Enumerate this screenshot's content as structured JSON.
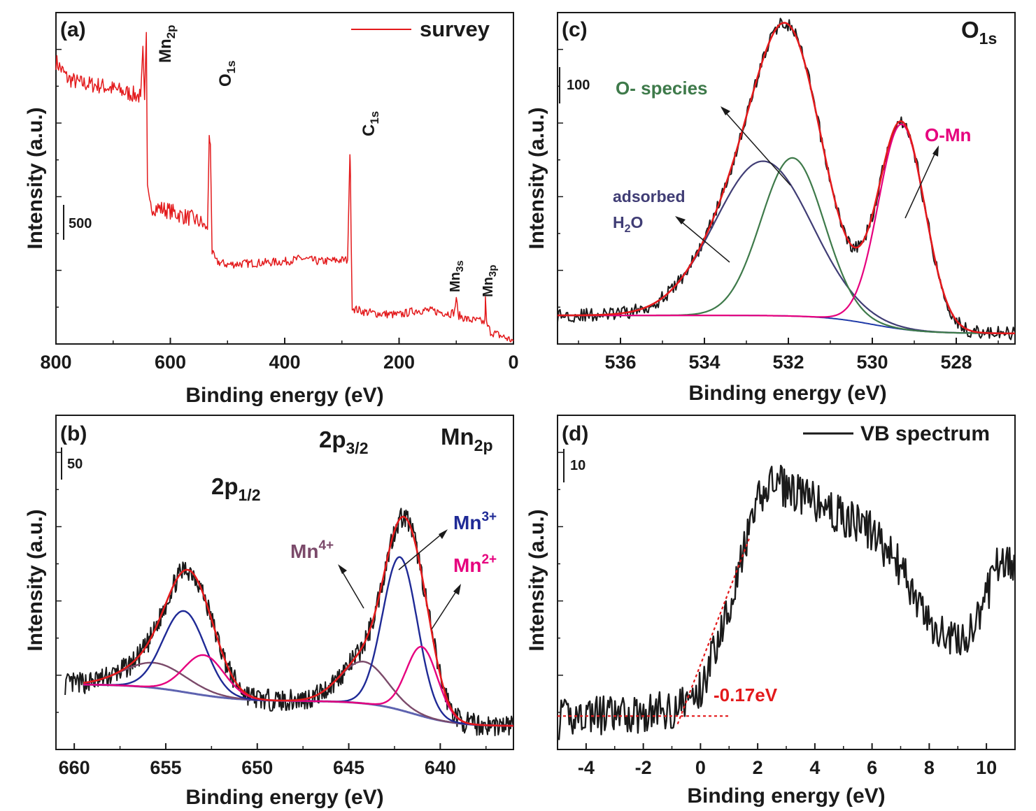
{
  "chart_data": [
    {
      "panel": "(a)",
      "type": "line",
      "xlabel": "Binding energy (eV)",
      "ylabel": "Intensity (a.u.)",
      "xlim": [
        800,
        0
      ],
      "x_ticks": [
        "800",
        "600",
        "400",
        "200",
        "0"
      ],
      "scale_bar": "500",
      "legend": [
        {
          "label": "survey",
          "color": "#e31a1c"
        }
      ],
      "series": [
        {
          "name": "survey",
          "color": "#e31a1c",
          "x": [
            800,
            780,
            760,
            740,
            720,
            700,
            680,
            660,
            652,
            648,
            645,
            642,
            640,
            636,
            620,
            600,
            580,
            560,
            545,
            540,
            535,
            532,
            530,
            527,
            520,
            500,
            480,
            450,
            400,
            370,
            340,
            300,
            290,
            286,
            285,
            284,
            282,
            278,
            260,
            240,
            200,
            170,
            150,
            130,
            110,
            103,
            100,
            97,
            80,
            60,
            50,
            49,
            47,
            40,
            20,
            0
          ],
          "y": [
            2100,
            1990,
            1960,
            1950,
            1940,
            1920,
            1900,
            1880,
            1870,
            2200,
            1850,
            2290,
            1250,
            1150,
            1140,
            1120,
            1090,
            1070,
            1040,
            1020,
            1000,
            1620,
            1560,
            850,
            790,
            770,
            775,
            780,
            790,
            810,
            790,
            800,
            800,
            1500,
            1350,
            1000,
            500,
            480,
            460,
            450,
            440,
            470,
            470,
            460,
            450,
            460,
            560,
            440,
            410,
            400,
            390,
            540,
            380,
            330,
            300,
            270
          ]
        }
      ],
      "annotations": [
        {
          "base": "Mn",
          "sub": "2p"
        },
        {
          "base": "O",
          "sub": "1s"
        },
        {
          "base": "C",
          "sub": "1s"
        },
        {
          "base": "Mn",
          "sub": "3s"
        },
        {
          "base": "Mn",
          "sub": "3p"
        }
      ]
    },
    {
      "panel": "(b)",
      "type": "line",
      "title_base": "Mn",
      "title_sub": "2p",
      "xlabel": "Binding energy (eV)",
      "ylabel": "Intensity (a.u.)",
      "xlim": [
        661,
        636
      ],
      "x_ticks": [
        "660",
        "655",
        "650",
        "645",
        "640"
      ],
      "scale_bar": "50",
      "series": [
        {
          "name": "Mn3+",
          "color": "#1f2a96",
          "components": [
            {
              "center": 654.0,
              "height": 97,
              "width": 1.15
            },
            {
              "center": 642.2,
              "height": 183,
              "width": 0.95
            }
          ]
        },
        {
          "name": "Mn2+",
          "color": "#e6007e",
          "components": [
            {
              "center": 652.9,
              "height": 48,
              "width": 1.1
            },
            {
              "center": 641.0,
              "height": 83,
              "width": 0.85
            }
          ]
        },
        {
          "name": "Mn4+",
          "color": "#7b4a6a",
          "components": [
            {
              "center": 655.6,
              "height": 30,
              "width": 1.7
            },
            {
              "center": 644.2,
              "height": 50,
              "width": 1.3
            }
          ]
        },
        {
          "name": "background",
          "color": "#5e63b0",
          "components": []
        },
        {
          "name": "fit",
          "color": "#e31a1c",
          "components": []
        },
        {
          "name": "raw",
          "color": "#1a1a1a",
          "components": []
        }
      ],
      "labels": {
        "p12": {
          "base": "2p",
          "sub": "1/2"
        },
        "p32": {
          "base": "2p",
          "sub": "3/2"
        },
        "mn4": {
          "base": "Mn",
          "sup": "4+"
        },
        "mn3": {
          "base": "Mn",
          "sup": "3+"
        },
        "mn2": {
          "base": "Mn",
          "sup": "2+"
        }
      }
    },
    {
      "panel": "(c)",
      "type": "line",
      "title_base": "O",
      "title_sub": "1s",
      "xlabel": "Binding energy (eV)",
      "ylabel": "Intensity (a.u.)",
      "xlim": [
        537.5,
        526.6
      ],
      "x_ticks": [
        "536",
        "534",
        "532",
        "530",
        "528"
      ],
      "scale_bar": "100",
      "series": [
        {
          "name": "adsorbed H2O",
          "color": "#403d75",
          "components": [
            {
              "center": 532.6,
              "height": 205,
              "width": 1.15
            }
          ]
        },
        {
          "name": "O- species",
          "color": "#3e7a4a",
          "components": [
            {
              "center": 531.9,
              "height": 210,
              "width": 0.75
            }
          ]
        },
        {
          "name": "O-Mn",
          "color": "#e6007e",
          "components": [
            {
              "center": 529.3,
              "height": 272,
              "width": 0.55
            }
          ]
        },
        {
          "name": "background",
          "color": "#1f3aa8",
          "components": []
        },
        {
          "name": "fit",
          "color": "#e31a1c",
          "components": []
        },
        {
          "name": "raw",
          "color": "#1a1a1a",
          "components": []
        }
      ],
      "labels": {
        "ospecies": "O- species",
        "omn": "O-Mn",
        "adsorbed": "adsorbed",
        "h2o": {
          "base": "H",
          "sub": "2",
          "rest": "O"
        }
      }
    },
    {
      "panel": "(d)",
      "type": "line",
      "xlabel": "Binding energy (eV)",
      "ylabel": "Intensity (a.u.)",
      "xlim": [
        -5,
        11
      ],
      "x_ticks": [
        "-4",
        "-2",
        "0",
        "2",
        "4",
        "6",
        "8",
        "10"
      ],
      "scale_bar": "10",
      "legend": [
        {
          "label": "VB spectrum",
          "color": "#1a1a1a"
        }
      ],
      "series": [
        {
          "name": "VB spectrum",
          "color": "#1a1a1a",
          "x": [
            -5,
            -4,
            -3,
            -2,
            -1,
            -0.5,
            0,
            0.5,
            1,
            1.5,
            2,
            2.5,
            3,
            4,
            5,
            6,
            7,
            7.5,
            8,
            8.5,
            9,
            9.5,
            10,
            10.5,
            11
          ],
          "y": [
            0,
            1,
            0.5,
            1,
            1.5,
            2.5,
            4,
            10,
            16,
            23,
            30,
            33,
            32,
            30,
            28,
            26,
            21,
            17,
            13,
            12,
            11,
            12,
            17,
            23,
            20
          ]
        }
      ],
      "annotations": [
        {
          "text": "-0.17eV",
          "color": "#e31a1c"
        }
      ],
      "fit_lines": [
        {
          "from": [
            -0.8,
            -0.5
          ],
          "to": [
            1.7,
            25
          ]
        },
        {
          "from": [
            -5,
            0.6
          ],
          "to": [
            1.0,
            0.6
          ]
        }
      ]
    }
  ]
}
